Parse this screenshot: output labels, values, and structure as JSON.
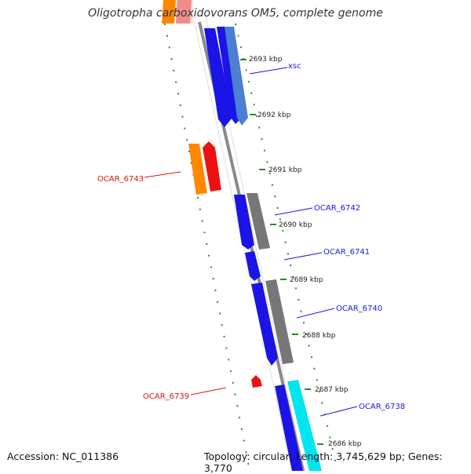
{
  "title": "Oligotropha carboxidovorans OM5, complete genome",
  "footer": {
    "accession": "Accession: NC_011386",
    "summary": "Topology: circular; Length: 3,745,629 bp; Genes: 3,770"
  },
  "colors": {
    "blue_cds": "#1a14e6",
    "gray_cds": "#777777",
    "steel_cds": "#4a7fd1",
    "cyan_cds": "#00e5ee",
    "red_cds": "#ee1111",
    "orange_cds": "#ff8800",
    "backbone": "#8a8a8a",
    "tick_green": "#2b8a2b",
    "forward_label": "#1a14e6",
    "reverse_label": "#dd1111"
  },
  "scale_labels": [
    "2693 kbp",
    "2692 kbp",
    "2691 kbp",
    "2690 kbp",
    "2689 kbp",
    "2688 kbp",
    "2687 kbp",
    "2686 kbp"
  ],
  "gene_labels": [
    {
      "text": "xsc",
      "strand": "forward"
    },
    {
      "text": "OCAR_6743",
      "strand": "reverse"
    },
    {
      "text": "OCAR_6742",
      "strand": "forward"
    },
    {
      "text": "OCAR_6741",
      "strand": "forward"
    },
    {
      "text": "OCAR_6740",
      "strand": "forward"
    },
    {
      "text": "OCAR_6739",
      "strand": "reverse"
    },
    {
      "text": "OCAR_6738",
      "strand": "forward"
    }
  ]
}
